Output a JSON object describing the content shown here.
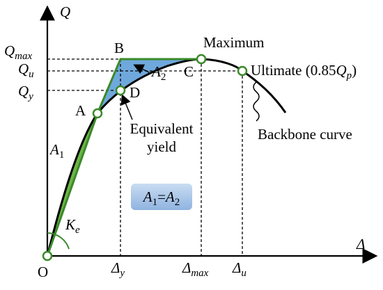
{
  "axes": {
    "y_label": "Q",
    "x_label": "Δ",
    "origin": "O"
  },
  "y_ticks": [
    {
      "symbol": "Q",
      "sub": "max"
    },
    {
      "symbol": "Q",
      "sub": "u"
    },
    {
      "symbol": "Q",
      "sub": "y"
    }
  ],
  "x_ticks": [
    {
      "symbol": "Δ",
      "sub": "y"
    },
    {
      "symbol": "Δ",
      "sub": "max"
    },
    {
      "symbol": "Δ",
      "sub": "u"
    }
  ],
  "points": {
    "a": "A",
    "b": "B",
    "c": "C",
    "d": "D",
    "maximum": "Maximum"
  },
  "ultimate": {
    "prefix": "Ultimate (0.85",
    "symbol": "Q",
    "sub": "p",
    "suffix": ")"
  },
  "areas": {
    "a1": {
      "symbol": "A",
      "sub": "1"
    },
    "a2": {
      "symbol": "A",
      "sub": "2"
    }
  },
  "stiffness": {
    "symbol": "K",
    "sub": "e"
  },
  "equivalent_yield": [
    "Equivalent",
    "yield"
  ],
  "backbone": "Backbone curve",
  "equation": {
    "left": "A",
    "left_sub": "1",
    "eq": "=",
    "right": "A",
    "right_sub": "2"
  }
}
